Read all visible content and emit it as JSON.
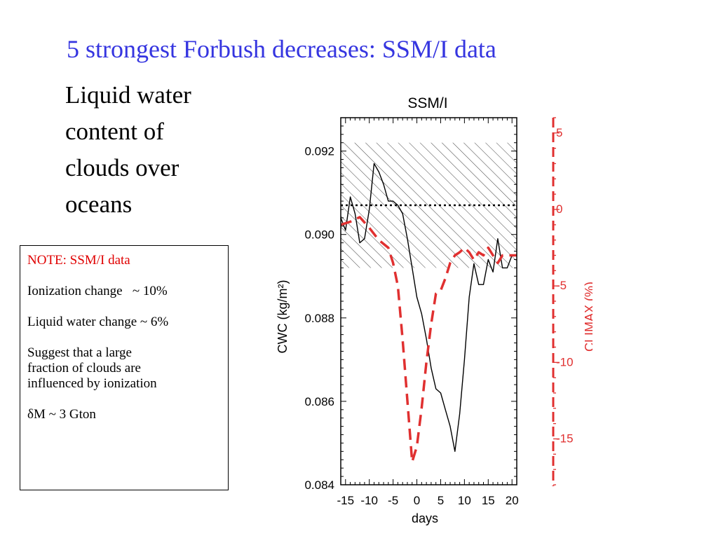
{
  "colors": {
    "title": "#3535e0",
    "note_header": "#e00000",
    "climax": "#e03030",
    "cwc": "#000000"
  },
  "slide_title": "5 strongest Forbush decreases: SSM/I data",
  "subtitle_lines": [
    "Liquid water",
    "content of",
    "clouds over",
    "oceans"
  ],
  "note": {
    "header": "NOTE: SSM/I data",
    "ionization": "Ionization change   ~ 10%",
    "liquid": "Liquid water change ~ 6%",
    "suggest_lines": [
      "Suggest that a large",
      "fraction of clouds are",
      "influenced by ionization"
    ],
    "delta_m": "δM ~ 3 Gton"
  },
  "chart_data": {
    "type": "line",
    "title": "SSM/I",
    "xlabel": "days",
    "ylabel": "CWC (kg/m²)",
    "y2label": "CLIMAX (%)",
    "xlim": [
      -16,
      21
    ],
    "ylim": [
      0.084,
      0.0928
    ],
    "y2lim": [
      -18,
      6
    ],
    "x_ticks": [
      -15,
      -10,
      -5,
      0,
      5,
      10,
      15,
      20
    ],
    "y_ticks": [
      0.084,
      0.086,
      0.088,
      0.09,
      0.092
    ],
    "y_tick_labels": [
      "0.084",
      "0.086",
      "0.088",
      "0.090",
      "0.092"
    ],
    "y2_ticks": [
      5,
      0,
      -5,
      -10,
      -15
    ],
    "y2_tick_labels": [
      "5",
      "0",
      "-5",
      "-10",
      "-15"
    ],
    "reference_line_y": 0.0907,
    "hatched_band": [
      0.0892,
      0.0922
    ],
    "series": [
      {
        "axis": "left",
        "style": "solid",
        "x": [
          -16,
          -15,
          -14,
          -13,
          -12,
          -11,
          -10,
          -9,
          -8,
          -7,
          -6,
          -5,
          -4,
          -3,
          -2,
          -1,
          0,
          1,
          2,
          3,
          4,
          5,
          6,
          7,
          8,
          9,
          10,
          11,
          12,
          13,
          14,
          15,
          16,
          17,
          18,
          19,
          20,
          21
        ],
        "y": [
          0.0904,
          0.0901,
          0.0909,
          0.0905,
          0.0898,
          0.0899,
          0.0906,
          0.0917,
          0.0915,
          0.0912,
          0.0908,
          0.0908,
          0.0907,
          0.0905,
          0.0899,
          0.0892,
          0.0885,
          0.0881,
          0.0875,
          0.0868,
          0.0863,
          0.0862,
          0.0858,
          0.0854,
          0.0848,
          0.0857,
          0.087,
          0.0885,
          0.0893,
          0.0888,
          0.0888,
          0.0894,
          0.0891,
          0.0899,
          0.0892,
          0.0892,
          0.0895,
          0.0895
        ]
      },
      {
        "axis": "right",
        "style": "dashed",
        "x": [
          -16,
          -14,
          -12,
          -10,
          -8,
          -6,
          -5,
          -4,
          -3,
          -2,
          -1,
          0,
          1,
          2,
          3,
          4,
          5,
          6,
          7,
          8,
          9,
          10,
          11,
          12,
          13,
          14,
          15,
          16,
          17,
          18,
          19,
          20,
          21
        ],
        "y": [
          -1.0,
          -0.8,
          -0.5,
          -1.2,
          -2.0,
          -2.5,
          -3.5,
          -5.0,
          -8.5,
          -12.5,
          -16.5,
          -15.5,
          -13.0,
          -10.0,
          -7.5,
          -5.5,
          -5.3,
          -4.5,
          -3.5,
          -3.0,
          -2.8,
          -2.5,
          -2.8,
          -3.3,
          -2.8,
          -3.0,
          -2.5,
          -3.0,
          -3.5,
          -3.0,
          -3.0,
          -3.0,
          -3.0
        ]
      }
    ]
  }
}
